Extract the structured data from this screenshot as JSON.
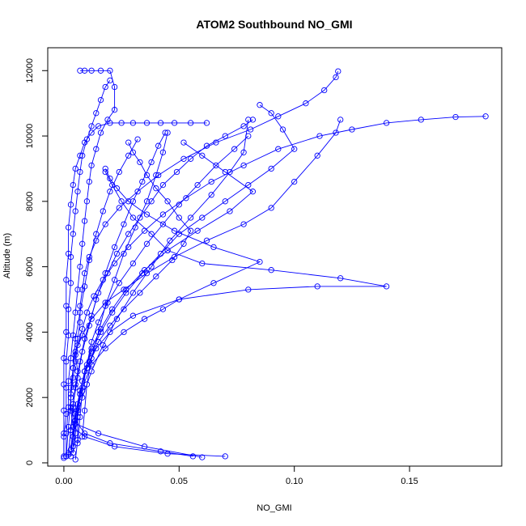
{
  "chart_data": {
    "type": "line",
    "title": "ATOM2 Southbound NO_GMI",
    "xlabel": "NO_GMI",
    "ylabel": "Altitude (m)",
    "xlim": [
      -0.007,
      0.19
    ],
    "ylim": [
      -100,
      12700
    ],
    "xticks": [
      0.0,
      0.05,
      0.1,
      0.15
    ],
    "xtick_labels": [
      "0.00",
      "0.05",
      "0.10",
      "0.15"
    ],
    "yticks": [
      0,
      2000,
      4000,
      6000,
      8000,
      10000,
      12000
    ],
    "ytick_labels": [
      "0",
      "2000",
      "4000",
      "6000",
      "8000",
      "10000",
      "12000"
    ],
    "grid": false,
    "color": "#0000ff",
    "marker": "open-circle",
    "series": [
      {
        "x": [
          0.056,
          0.042,
          0.02,
          0.009,
          0.005,
          0.004,
          0.005,
          0.006,
          0.005,
          0.006,
          0.007,
          0.007,
          0.008,
          0.009,
          0.011,
          0.014,
          0.018,
          0.024,
          0.032,
          0.041,
          0.052,
          0.066,
          0.081,
          0.093,
          0.105,
          0.113,
          0.118,
          0.119
        ],
        "y": [
          200,
          350,
          600,
          900,
          1300,
          1800,
          2300,
          2800,
          3300,
          3800,
          4300,
          4800,
          5300,
          5800,
          6300,
          6800,
          7300,
          7800,
          8300,
          8800,
          9300,
          9800,
          10200,
          10600,
          11000,
          11400,
          11800,
          11980
        ]
      },
      {
        "x": [
          0.07,
          0.045,
          0.022,
          0.009,
          0.004,
          0.003,
          0.003,
          0.004,
          0.005,
          0.006,
          0.008,
          0.01,
          0.013,
          0.017,
          0.022,
          0.028,
          0.035,
          0.043,
          0.053,
          0.064,
          0.078,
          0.093,
          0.111,
          0.125,
          0.14,
          0.155,
          0.17,
          0.183
        ],
        "y": [
          200,
          280,
          500,
          800,
          1100,
          1600,
          2100,
          2600,
          3100,
          3600,
          4100,
          4600,
          5100,
          5600,
          6100,
          6600,
          7100,
          7600,
          8100,
          8600,
          9100,
          9600,
          10000,
          10200,
          10400,
          10500,
          10580,
          10600
        ]
      },
      {
        "x": [
          0.06,
          0.035,
          0.015,
          0.005,
          0.003,
          0.003,
          0.004,
          0.005,
          0.008,
          0.012,
          0.018,
          0.026,
          0.036,
          0.048,
          0.062,
          0.078,
          0.09,
          0.1,
          0.11,
          0.118,
          0.12
        ],
        "y": [
          170,
          500,
          900,
          1200,
          1700,
          2300,
          2900,
          3400,
          3900,
          4400,
          4900,
          5300,
          5800,
          6300,
          6800,
          7300,
          7800,
          8600,
          9400,
          10100,
          10500
        ]
      },
      {
        "x": [
          0.003,
          0.004,
          0.005,
          0.007,
          0.01,
          0.014,
          0.02,
          0.03,
          0.05,
          0.08,
          0.11,
          0.14,
          0.12,
          0.09,
          0.06,
          0.045,
          0.038,
          0.03,
          0.025,
          0.021,
          0.018
        ],
        "y": [
          200,
          800,
          1500,
          2200,
          2900,
          3500,
          4000,
          4500,
          5000,
          5300,
          5400,
          5400,
          5650,
          5900,
          6100,
          6500,
          7000,
          7500,
          8000,
          8500,
          8900
        ]
      },
      {
        "x": [
          0.004,
          0.005,
          0.006,
          0.008,
          0.012,
          0.018,
          0.026,
          0.035,
          0.043,
          0.05,
          0.065,
          0.085,
          0.065,
          0.048,
          0.036,
          0.028,
          0.023,
          0.02,
          0.018
        ],
        "y": [
          300,
          900,
          1600,
          2300,
          3000,
          3500,
          4000,
          4400,
          4700,
          5000,
          5500,
          6150,
          6600,
          7100,
          7600,
          8000,
          8400,
          8700,
          9000
        ]
      },
      {
        "x": [
          0.005,
          0.006,
          0.006,
          0.007,
          0.009,
          0.012,
          0.016,
          0.021,
          0.027,
          0.034,
          0.042,
          0.05,
          0.06,
          0.07,
          0.08,
          0.09,
          0.1,
          0.095,
          0.09,
          0.085
        ],
        "y": [
          100,
          700,
          1400,
          2100,
          2800,
          3400,
          4000,
          4600,
          5200,
          5800,
          6400,
          7000,
          7500,
          8000,
          8500,
          9000,
          9600,
          10200,
          10700,
          10950
        ]
      },
      {
        "x": [
          0.001,
          0.001,
          0.002,
          0.002,
          0.003,
          0.004,
          0.005,
          0.006,
          0.007,
          0.008,
          0.009,
          0.01,
          0.011,
          0.012,
          0.014,
          0.016,
          0.019,
          0.022,
          0.022,
          0.02,
          0.016,
          0.012,
          0.009,
          0.007
        ],
        "y": [
          200,
          900,
          1700,
          2500,
          3200,
          3900,
          4600,
          5300,
          6000,
          6700,
          7400,
          8000,
          8600,
          9100,
          9600,
          10100,
          10500,
          10800,
          11500,
          12000,
          12000,
          12000,
          12000,
          12000
        ]
      },
      {
        "x": [
          0.0,
          0.0,
          0.001,
          0.001,
          0.001,
          0.002,
          0.002,
          0.003,
          0.003,
          0.004,
          0.005,
          0.006,
          0.007,
          0.008,
          0.01,
          0.012,
          0.014,
          0.016,
          0.018,
          0.02
        ],
        "y": [
          150,
          800,
          1500,
          2300,
          3100,
          3900,
          4700,
          5500,
          6300,
          7000,
          7700,
          8300,
          8900,
          9400,
          9900,
          10300,
          10700,
          11100,
          11500,
          11700
        ]
      },
      {
        "x": [
          0.0,
          0.0,
          0.0,
          0.0,
          0.0,
          0.001,
          0.001,
          0.001,
          0.002,
          0.002,
          0.003,
          0.004,
          0.005,
          0.007,
          0.009,
          0.012,
          0.015,
          0.02,
          0.025,
          0.03,
          0.036,
          0.042,
          0.048,
          0.055,
          0.062
        ],
        "y": [
          200,
          900,
          1600,
          2400,
          3200,
          4000,
          4800,
          5600,
          6400,
          7200,
          7900,
          8500,
          9000,
          9400,
          9800,
          10100,
          10300,
          10400,
          10400,
          10400,
          10400,
          10400,
          10400,
          10400,
          10400
        ]
      },
      {
        "x": [
          0.003,
          0.004,
          0.006,
          0.008,
          0.011,
          0.015,
          0.02,
          0.026,
          0.033,
          0.04,
          0.047,
          0.052,
          0.055,
          0.05,
          0.045,
          0.04,
          0.036,
          0.033,
          0.03,
          0.028
        ],
        "y": [
          400,
          1100,
          1800,
          2500,
          3100,
          3700,
          4200,
          4700,
          5200,
          5700,
          6200,
          6700,
          7100,
          7500,
          8000,
          8400,
          8800,
          9200,
          9500,
          9800
        ]
      },
      {
        "x": [
          0.002,
          0.003,
          0.004,
          0.005,
          0.007,
          0.009,
          0.012,
          0.015,
          0.019,
          0.023,
          0.028,
          0.033,
          0.038,
          0.043,
          0.049,
          0.055,
          0.062,
          0.07,
          0.078,
          0.082
        ],
        "y": [
          300,
          1000,
          1700,
          2400,
          3100,
          3800,
          4500,
          5200,
          5800,
          6400,
          7000,
          7500,
          8000,
          8500,
          8900,
          9300,
          9700,
          10000,
          10300,
          10500
        ]
      },
      {
        "x": [
          0.004,
          0.005,
          0.007,
          0.009,
          0.012,
          0.016,
          0.021,
          0.027,
          0.035,
          0.045,
          0.058,
          0.072,
          0.082,
          0.07,
          0.06,
          0.052
        ],
        "y": [
          500,
          1300,
          2100,
          2800,
          3500,
          4100,
          4700,
          5300,
          5900,
          6500,
          7100,
          7700,
          8300,
          8900,
          9400,
          9800
        ]
      },
      {
        "x": [
          0.006,
          0.007,
          0.008,
          0.01,
          0.012,
          0.015,
          0.019,
          0.024,
          0.03,
          0.036,
          0.043,
          0.05,
          0.058,
          0.066,
          0.074,
          0.08
        ],
        "y": [
          600,
          1400,
          2200,
          3000,
          3700,
          4300,
          4900,
          5500,
          6100,
          6700,
          7300,
          7900,
          8500,
          9100,
          9600,
          10000
        ]
      },
      {
        "x": [
          0.002,
          0.003,
          0.004,
          0.006,
          0.008,
          0.011,
          0.014,
          0.018,
          0.022,
          0.026,
          0.03,
          0.034,
          0.038,
          0.041,
          0.044
        ],
        "y": [
          250,
          1000,
          1800,
          2600,
          3400,
          4200,
          5000,
          5800,
          6600,
          7300,
          8000,
          8600,
          9200,
          9700,
          10100
        ]
      },
      {
        "x": [
          0.001,
          0.002,
          0.003,
          0.004,
          0.005,
          0.007,
          0.009,
          0.011,
          0.014,
          0.017,
          0.02,
          0.024,
          0.028,
          0.032
        ],
        "y": [
          200,
          1100,
          2000,
          2900,
          3800,
          4600,
          5400,
          6200,
          7000,
          7700,
          8300,
          8900,
          9400,
          9900
        ]
      },
      {
        "x": [
          0.008,
          0.009,
          0.01,
          0.012,
          0.015,
          0.018,
          0.022,
          0.026,
          0.031,
          0.036,
          0.04,
          0.043,
          0.045
        ],
        "y": [
          800,
          1600,
          2400,
          3200,
          4000,
          4800,
          5600,
          6400,
          7200,
          8000,
          8800,
          9500,
          10100
        ]
      },
      {
        "x": [
          0.003,
          0.005,
          0.008,
          0.012,
          0.017,
          0.023,
          0.03,
          0.038,
          0.046,
          0.055,
          0.064,
          0.072,
          0.078,
          0.08
        ],
        "y": [
          400,
          1200,
          2000,
          2800,
          3600,
          4400,
          5200,
          6000,
          6800,
          7500,
          8200,
          8900,
          9500,
          10500
        ]
      }
    ]
  }
}
